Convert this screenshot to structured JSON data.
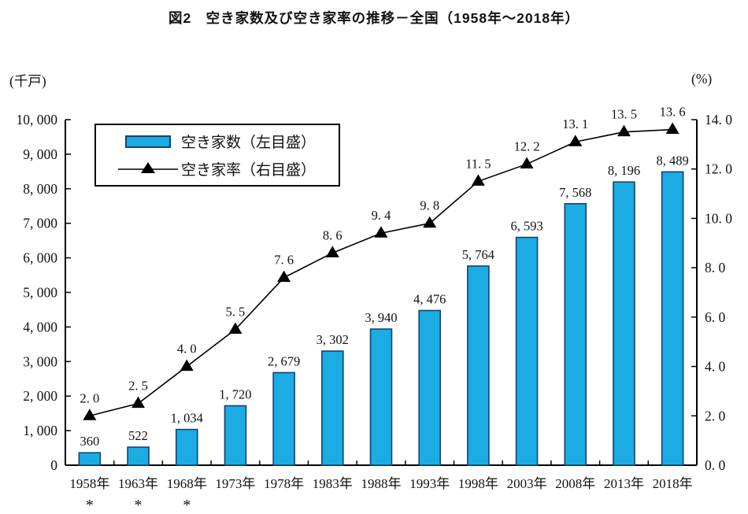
{
  "header": {
    "title": "図2　空き家数及び空き家率の推移－全国（1958年～2018年）"
  },
  "chart_data": {
    "type": "bar",
    "subtype": "bar-line-combo",
    "title": "図2　空き家数及び空き家率の推移－全国（1958年～2018年）",
    "categories": [
      "1958年",
      "1963年",
      "1968年",
      "1973年",
      "1978年",
      "1983年",
      "1988年",
      "1993年",
      "1998年",
      "2003年",
      "2008年",
      "2013年",
      "2018年"
    ],
    "asterisk_flags": [
      1,
      1,
      1,
      0,
      0,
      0,
      0,
      0,
      0,
      0,
      0,
      0,
      0
    ],
    "asterisk_symbol": "*",
    "series": [
      {
        "name": "空き家数（左目盛）",
        "type": "bar",
        "axis": "left",
        "color": "#1BACE4",
        "border_color": "#16416E",
        "values": [
          360,
          522,
          1034,
          1720,
          2679,
          3302,
          3940,
          4476,
          5764,
          6593,
          7568,
          8196,
          8489
        ],
        "labels": [
          "360",
          "522",
          "1, 034",
          "1, 720",
          "2, 679",
          "3, 302",
          "3, 940",
          "4, 476",
          "5, 764",
          "6, 593",
          "7, 568",
          "8, 196",
          "8, 489"
        ]
      },
      {
        "name": "空き家率（右目盛）",
        "type": "line",
        "axis": "right",
        "color": "#000000",
        "marker": "triangle-up",
        "values": [
          2.0,
          2.5,
          4.0,
          5.5,
          7.6,
          8.6,
          9.4,
          9.8,
          11.5,
          12.2,
          13.1,
          13.5,
          13.6
        ],
        "labels": [
          "2. 0",
          "2. 5",
          "4. 0",
          "5. 5",
          "7. 6",
          "8. 6",
          "9. 4",
          "9. 8",
          "11. 5",
          "12. 2",
          "13. 1",
          "13. 5",
          "13. 6"
        ]
      }
    ],
    "left_axis": {
      "unit": "(千戸)",
      "min": 0,
      "max": 10000,
      "step": 1000,
      "tick_labels": [
        "0",
        "1, 000",
        "2, 000",
        "3, 000",
        "4, 000",
        "5, 000",
        "6, 000",
        "7, 000",
        "8, 000",
        "9, 000",
        "10, 000"
      ]
    },
    "right_axis": {
      "unit": "(%)",
      "min": 0,
      "max": 14,
      "step": 2,
      "tick_labels": [
        "0. 0",
        "2. 0",
        "4. 0",
        "6. 0",
        "8. 0",
        "10. 0",
        "12. 0",
        "14. 0"
      ]
    },
    "grid": "off",
    "legend_position": "inside-top-left"
  }
}
